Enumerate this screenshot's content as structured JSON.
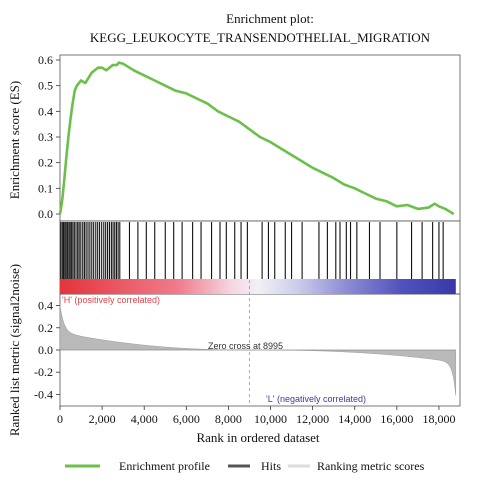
{
  "chart_data": {
    "type": "line",
    "title_line1": "Enrichment plot:",
    "title_line2": "KEGG_LEUKOCYTE_TRANSENDOTHELIAL_MIGRATION",
    "es_ylabel": "Enrichment score (ES)",
    "es_yticks": [
      "0.6",
      "0.5",
      "0.4",
      "0.3",
      "0.2",
      "0.1",
      "0.0"
    ],
    "es_ylim": [
      0,
      0.6
    ],
    "xlim": [
      0,
      19000
    ],
    "xticks": [
      0,
      2000,
      4000,
      6000,
      8000,
      10000,
      12000,
      14000,
      16000,
      18000
    ],
    "xtick_labels": [
      "0",
      "2,000",
      "4,000",
      "6,000",
      "8,000",
      "10,000",
      "12,000",
      "14,000",
      "16,000",
      "18,000"
    ],
    "xlabel": "Rank in ordered dataset",
    "enrichment_profile": {
      "x": [
        0,
        100,
        200,
        300,
        400,
        500,
        600,
        700,
        800,
        1000,
        1200,
        1500,
        1800,
        2000,
        2200,
        2500,
        2700,
        2800,
        3000,
        3500,
        4000,
        4500,
        5000,
        5500,
        6000,
        6500,
        7000,
        7500,
        8000,
        8500,
        9000,
        9500,
        10000,
        10500,
        11000,
        11500,
        12000,
        12500,
        13000,
        13500,
        14000,
        14500,
        15000,
        15500,
        16000,
        16500,
        17000,
        17500,
        17800,
        18000,
        18300,
        18700
      ],
      "y": [
        0.0,
        0.05,
        0.13,
        0.22,
        0.3,
        0.37,
        0.43,
        0.48,
        0.5,
        0.52,
        0.51,
        0.55,
        0.57,
        0.57,
        0.56,
        0.58,
        0.58,
        0.59,
        0.585,
        0.56,
        0.54,
        0.52,
        0.5,
        0.48,
        0.47,
        0.45,
        0.43,
        0.4,
        0.38,
        0.36,
        0.33,
        0.3,
        0.28,
        0.255,
        0.23,
        0.205,
        0.18,
        0.16,
        0.14,
        0.115,
        0.1,
        0.08,
        0.06,
        0.05,
        0.03,
        0.035,
        0.02,
        0.025,
        0.04,
        0.03,
        0.02,
        0.0
      ]
    },
    "hits": [
      40,
      110,
      170,
      230,
      290,
      350,
      420,
      480,
      540,
      610,
      680,
      760,
      840,
      910,
      990,
      1080,
      1160,
      1240,
      1330,
      1420,
      1510,
      1600,
      1700,
      1790,
      1880,
      1980,
      2080,
      2170,
      2260,
      2350,
      2440,
      2520,
      2600,
      2680,
      2760,
      2840,
      3300,
      3700,
      4100,
      4500,
      5000,
      5400,
      5800,
      6300,
      6700,
      7200,
      7600,
      7900,
      8300,
      8600,
      8900,
      9600,
      9900,
      10200,
      10700,
      11000,
      11500,
      12300,
      12700,
      13100,
      13300,
      13600,
      13800,
      14100,
      14700,
      15200,
      16000,
      16700,
      17200,
      17700,
      18000,
      18200
    ],
    "bar_labels": {
      "h": "'H' (positively correlated)",
      "l": "'L' (negatively correlated)"
    },
    "rank_ylabel": "Ranked list metric (signal2noise)",
    "rank_yticks": [
      "0.4",
      "0.2",
      "0.0",
      "-0.2",
      "-0.4"
    ],
    "rank_ylim": [
      -0.45,
      0.45
    ],
    "zero_cross": "Zero cross at 8995",
    "zero_cross_rank": 8995,
    "legend": [
      "Enrichment profile",
      "Hits",
      "Ranking metric scores"
    ],
    "colors": {
      "profile": "#6ac04a",
      "hits": "#111111",
      "metric": "#b0b0b0",
      "h_label": "#e2444b",
      "l_label": "#3a3aa8"
    }
  }
}
